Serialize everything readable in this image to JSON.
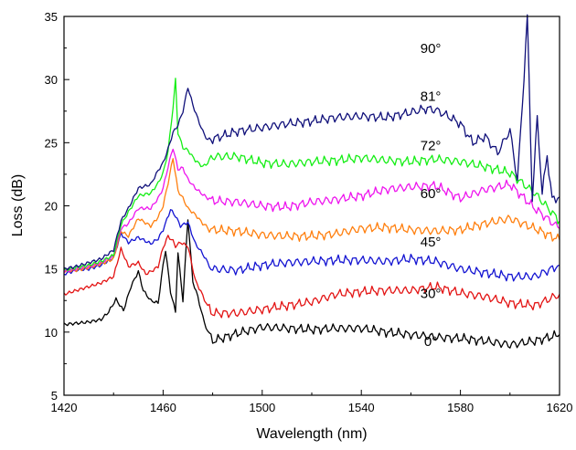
{
  "chart_data": {
    "type": "line",
    "xlabel": "Wavelength (nm)",
    "ylabel": "Loss (dB)",
    "xlim": [
      1420,
      1620
    ],
    "ylim": [
      5,
      35
    ],
    "xticks": [
      1420,
      1460,
      1500,
      1540,
      1580,
      1620
    ],
    "xtick_labels": [
      "1420",
      "1460",
      "1500",
      "1540",
      "1580",
      "1620"
    ],
    "yticks": [
      5,
      10,
      15,
      20,
      25,
      30,
      35
    ],
    "ytick_labels": [
      "5",
      "10",
      "15",
      "20",
      "25",
      "30",
      "35"
    ],
    "grid": false,
    "legend": "none",
    "series": [
      {
        "name": "0°",
        "color": "#000000",
        "label_pos": [
          1568,
          8.9
        ],
        "x": [
          1420,
          1425,
          1430,
          1435,
          1438,
          1441,
          1444,
          1447,
          1450,
          1452,
          1455,
          1458,
          1460,
          1461,
          1463,
          1465,
          1466,
          1468,
          1470,
          1472,
          1474,
          1476,
          1478,
          1480,
          1490,
          1500,
          1510,
          1520,
          1530,
          1540,
          1550,
          1560,
          1570,
          1580,
          1590,
          1600,
          1610,
          1620
        ],
        "y": [
          10.6,
          10.7,
          10.8,
          11.0,
          11.6,
          12.6,
          11.7,
          13.6,
          14.8,
          13.3,
          12.5,
          12.3,
          15.3,
          16.5,
          13.2,
          11.6,
          16.3,
          12.5,
          19.0,
          14.0,
          12.8,
          11.2,
          10.0,
          9.3,
          9.9,
          10.4,
          10.3,
          10.2,
          10.3,
          10.3,
          10.0,
          9.8,
          9.6,
          9.5,
          9.3,
          9.0,
          9.3,
          9.8
        ]
      },
      {
        "name": "30°",
        "color": "#e31414",
        "label_pos": [
          1568,
          12.7
        ],
        "x": [
          1420,
          1425,
          1430,
          1435,
          1440,
          1443,
          1446,
          1450,
          1453,
          1456,
          1458,
          1460,
          1462,
          1464,
          1465,
          1467,
          1470,
          1473,
          1476,
          1478,
          1480,
          1490,
          1500,
          1510,
          1520,
          1530,
          1540,
          1550,
          1560,
          1570,
          1580,
          1590,
          1600,
          1610,
          1620
        ],
        "y": [
          13.0,
          13.3,
          13.6,
          13.9,
          14.4,
          16.6,
          15.2,
          15.5,
          14.6,
          14.9,
          15.2,
          16.7,
          17.6,
          17.2,
          16.8,
          17.1,
          16.8,
          14.1,
          12.9,
          12.0,
          11.5,
          11.5,
          11.8,
          12.1,
          12.4,
          13.0,
          13.2,
          13.3,
          13.3,
          13.6,
          13.1,
          12.8,
          12.3,
          12.1,
          13.0
        ]
      },
      {
        "name": "45°",
        "color": "#1414d2",
        "label_pos": [
          1568,
          16.8
        ],
        "x": [
          1420,
          1425,
          1430,
          1435,
          1440,
          1443,
          1446,
          1450,
          1455,
          1458,
          1460,
          1463,
          1465,
          1467,
          1470,
          1473,
          1476,
          1478,
          1480,
          1490,
          1500,
          1510,
          1520,
          1530,
          1540,
          1550,
          1560,
          1570,
          1580,
          1590,
          1600,
          1610,
          1620
        ],
        "y": [
          14.6,
          14.9,
          15.0,
          15.3,
          15.9,
          17.8,
          17.1,
          17.5,
          17.0,
          17.4,
          18.1,
          19.7,
          19.2,
          18.4,
          18.7,
          17.0,
          16.2,
          15.5,
          15.0,
          14.9,
          15.3,
          15.5,
          15.6,
          15.7,
          15.7,
          15.6,
          15.8,
          15.6,
          15.0,
          14.7,
          14.4,
          14.4,
          15.3
        ]
      },
      {
        "name": "60°",
        "color": "#ff7f0e",
        "label_pos": [
          1568,
          20.6
        ],
        "x": [
          1420,
          1425,
          1430,
          1435,
          1440,
          1443,
          1446,
          1450,
          1455,
          1458,
          1460,
          1462,
          1464,
          1466,
          1468,
          1470,
          1473,
          1476,
          1478,
          1480,
          1490,
          1500,
          1510,
          1520,
          1530,
          1540,
          1550,
          1560,
          1570,
          1580,
          1590,
          1600,
          1610,
          1620
        ],
        "y": [
          14.8,
          14.9,
          15.1,
          15.4,
          15.8,
          18.0,
          17.6,
          19.0,
          18.4,
          19.1,
          20.0,
          21.8,
          23.8,
          21.2,
          20.6,
          19.8,
          19.3,
          18.6,
          18.3,
          18.1,
          18.0,
          17.7,
          17.6,
          17.6,
          17.8,
          18.2,
          18.3,
          18.1,
          18.0,
          18.1,
          18.6,
          19.0,
          18.2,
          17.3
        ]
      },
      {
        "name": "72°",
        "color": "#ee15ee",
        "label_pos": [
          1568,
          24.4
        ],
        "x": [
          1420,
          1425,
          1430,
          1435,
          1440,
          1443,
          1446,
          1450,
          1455,
          1458,
          1460,
          1462,
          1464,
          1466,
          1468,
          1470,
          1473,
          1476,
          1478,
          1480,
          1490,
          1500,
          1510,
          1520,
          1530,
          1540,
          1550,
          1560,
          1570,
          1580,
          1590,
          1600,
          1610,
          1620
        ],
        "y": [
          14.8,
          15.0,
          15.2,
          15.5,
          16.0,
          18.2,
          18.6,
          19.8,
          19.8,
          20.6,
          21.4,
          23.1,
          24.6,
          22.9,
          23.0,
          22.1,
          21.4,
          20.9,
          20.6,
          20.4,
          20.3,
          20.0,
          19.9,
          20.3,
          20.5,
          20.8,
          21.3,
          21.5,
          21.6,
          20.6,
          21.3,
          21.7,
          19.8,
          18.2
        ]
      },
      {
        "name": "81°",
        "color": "#15ee15",
        "label_pos": [
          1568,
          28.3
        ],
        "x": [
          1420,
          1425,
          1430,
          1435,
          1440,
          1443,
          1446,
          1450,
          1455,
          1458,
          1460,
          1462,
          1464,
          1465,
          1466,
          1468,
          1470,
          1473,
          1476,
          1478,
          1480,
          1490,
          1500,
          1510,
          1520,
          1530,
          1540,
          1550,
          1560,
          1570,
          1580,
          1590,
          1600,
          1610,
          1620
        ],
        "y": [
          14.9,
          15.1,
          15.3,
          15.6,
          16.1,
          18.5,
          19.5,
          20.8,
          21.0,
          21.8,
          22.6,
          24.3,
          27.8,
          30.0,
          25.8,
          24.6,
          24.4,
          23.6,
          23.1,
          23.4,
          23.9,
          23.9,
          23.4,
          23.3,
          23.5,
          23.6,
          23.8,
          23.6,
          23.5,
          23.7,
          23.5,
          23.1,
          22.6,
          21.0,
          18.8
        ]
      },
      {
        "name": "90°",
        "color": "#10107a",
        "label_pos": [
          1568,
          32.1
        ],
        "x": [
          1420,
          1425,
          1430,
          1435,
          1440,
          1443,
          1446,
          1450,
          1455,
          1458,
          1460,
          1462,
          1464,
          1466,
          1468,
          1470,
          1472,
          1474,
          1476,
          1478,
          1480,
          1490,
          1500,
          1510,
          1520,
          1530,
          1540,
          1550,
          1560,
          1566,
          1570,
          1575,
          1580,
          1585,
          1590,
          1595,
          1600,
          1603,
          1605,
          1607,
          1609,
          1611,
          1613,
          1615,
          1617,
          1620
        ],
        "y": [
          15.0,
          15.2,
          15.5,
          15.8,
          16.5,
          18.8,
          19.8,
          21.4,
          21.7,
          22.8,
          23.4,
          24.5,
          25.8,
          26.4,
          27.5,
          29.4,
          28.0,
          26.9,
          25.9,
          25.2,
          25.3,
          25.9,
          26.2,
          26.5,
          26.7,
          27.0,
          27.1,
          27.0,
          27.4,
          27.7,
          27.6,
          27.1,
          26.5,
          25.0,
          25.5,
          24.2,
          26.0,
          22.0,
          28.0,
          35.0,
          20.5,
          27.0,
          21.0,
          24.0,
          20.5,
          20.7
        ]
      }
    ]
  }
}
